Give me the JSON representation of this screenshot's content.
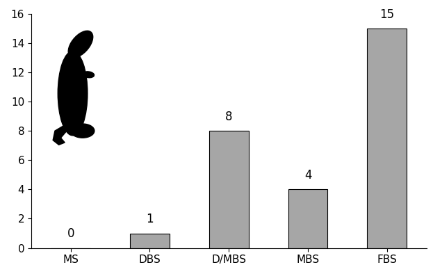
{
  "chart_data": {
    "type": "bar",
    "categories": [
      "MS",
      "DBS",
      "D/MBS",
      "MBS",
      "FBS"
    ],
    "values": [
      0,
      1,
      8,
      4,
      15
    ],
    "color": "#a6a6a6",
    "ylim": [
      0,
      16
    ],
    "yticks": [
      0,
      2,
      4,
      6,
      8,
      10,
      12,
      14,
      16
    ],
    "grid": false,
    "data_labels": true
  }
}
